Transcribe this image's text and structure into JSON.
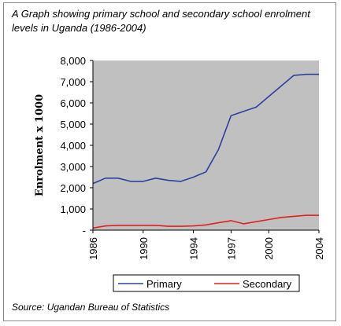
{
  "caption": "A Graph showing primary school and secondary school enrolment levels in Uganda (1986-2004)",
  "source": "Source: Ugandan Bureau of Statistics",
  "chart_data": {
    "type": "line",
    "ylabel": "Enrolment x 1000",
    "xlabel": "",
    "ylim": [
      0,
      8000
    ],
    "yticks": [
      0,
      1000,
      2000,
      3000,
      4000,
      5000,
      6000,
      7000,
      8000
    ],
    "ytick_labels": [
      "-",
      "1,000",
      "2,000",
      "3,000",
      "4,000",
      "5,000",
      "6,000",
      "7,000",
      "8,000"
    ],
    "xlim": [
      1986,
      2004
    ],
    "xticks": [
      1986,
      1990,
      1994,
      1997,
      2000,
      2004
    ],
    "plot_background": "#c0c0c0",
    "grid": false,
    "legend_position": "bottom",
    "series": [
      {
        "name": "Primary",
        "color": "#2f3f9e",
        "x": [
          1986,
          1987,
          1988,
          1989,
          1990,
          1991,
          1992,
          1993,
          1994,
          1995,
          1996,
          1997,
          1998,
          1999,
          2000,
          2001,
          2002,
          2003,
          2004
        ],
        "values": [
          2200,
          2450,
          2450,
          2300,
          2300,
          2450,
          2350,
          2300,
          2500,
          2750,
          3800,
          5400,
          5600,
          5800,
          6300,
          6800,
          7300,
          7350,
          7350
        ]
      },
      {
        "name": "Secondary",
        "color": "#e02020",
        "x": [
          1986,
          1987,
          1988,
          1989,
          1990,
          1991,
          1992,
          1993,
          1994,
          1995,
          1996,
          1997,
          1998,
          1999,
          2000,
          2001,
          2002,
          2003,
          2004
        ],
        "values": [
          100,
          200,
          230,
          230,
          230,
          230,
          180,
          180,
          200,
          250,
          350,
          450,
          300,
          400,
          500,
          600,
          650,
          700,
          700
        ]
      }
    ]
  }
}
